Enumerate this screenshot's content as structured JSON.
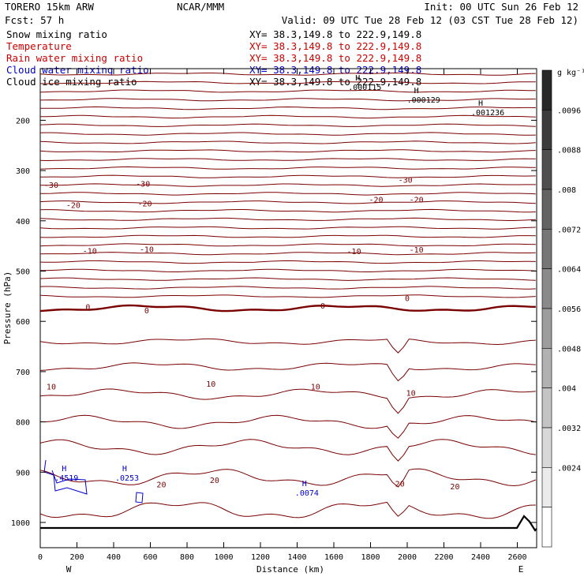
{
  "header": {
    "model": "TORERO  15km ARW",
    "org": "NCAR/MMM",
    "init": "Init: 00 UTC Sun 26 Feb 12",
    "fcst": "Fcst:   57 h",
    "valid": "Valid: 09 UTC Tue 28 Feb 12 (03 CST Tue 28 Feb 12)"
  },
  "fields": [
    {
      "name": "Snow mixing ratio",
      "xy": "XY=  38.3,149.8 to 222.9,149.8",
      "color": "#000000",
      "xy_color": "#000000"
    },
    {
      "name": "Temperature",
      "xy": "XY=  38.3,149.8 to 222.9,149.8",
      "color": "#cc0000",
      "xy_color": "#cc0000"
    },
    {
      "name": "Rain water mixing ratio",
      "xy": "XY=  38.3,149.8 to 222.9,149.8",
      "color": "#cc0000",
      "xy_color": "#cc0000"
    },
    {
      "name": "Cloud water mixing ratio",
      "xy": "XY=  38.3,149.8 to 222.9,149.8",
      "color": "#0000cc",
      "xy_color": "#0000cc"
    },
    {
      "name": "Cloud ice mixing ratio",
      "xy": "XY=  38.3,149.8 to 222.9,149.8",
      "color": "#000000",
      "xy_color": "#000000"
    }
  ],
  "chart_data": {
    "type": "contour",
    "xlabel": "Distance (km)",
    "ylabel": "Pressure (hPa)",
    "xlim": [
      0,
      2760
    ],
    "ylim": [
      1050,
      100
    ],
    "x_ticks": [
      0,
      200,
      400,
      600,
      800,
      1000,
      1200,
      1400,
      1600,
      1800,
      2000,
      2200,
      2400,
      2600
    ],
    "x_tick_labels": [
      "0",
      "200",
      "400",
      "600",
      "800",
      "1000",
      "1200",
      "1400",
      "1600",
      "1800",
      "2000",
      "2200",
      "2400",
      "2600"
    ],
    "y_ticks": [
      200,
      300,
      400,
      500,
      600,
      700,
      800,
      900,
      1000
    ],
    "y_tick_labels": [
      "200",
      "300",
      "400",
      "500",
      "600",
      "700",
      "800",
      "900",
      "1000"
    ],
    "x_end_labels": {
      "left": "W",
      "right": "E"
    },
    "temperature_labels": [
      {
        "text": "-30",
        "x": 60,
        "p": 328
      },
      {
        "text": "-30",
        "x": 560,
        "p": 326
      },
      {
        "text": "-30",
        "x": 1990,
        "p": 318
      },
      {
        "text": "-20",
        "x": 180,
        "p": 368
      },
      {
        "text": "-20",
        "x": 570,
        "p": 365
      },
      {
        "text": "-20",
        "x": 1830,
        "p": 357
      },
      {
        "text": "-20",
        "x": 2050,
        "p": 357
      },
      {
        "text": "-10",
        "x": 270,
        "p": 459
      },
      {
        "text": "-10",
        "x": 580,
        "p": 456
      },
      {
        "text": "-10",
        "x": 1710,
        "p": 460
      },
      {
        "text": "-10",
        "x": 2050,
        "p": 457
      },
      {
        "text": "0",
        "x": 260,
        "p": 571
      },
      {
        "text": "0",
        "x": 580,
        "p": 578
      },
      {
        "text": "0",
        "x": 1540,
        "p": 568
      },
      {
        "text": "0",
        "x": 2000,
        "p": 553
      },
      {
        "text": "10",
        "x": 60,
        "p": 729
      },
      {
        "text": "10",
        "x": 930,
        "p": 724
      },
      {
        "text": "10",
        "x": 1500,
        "p": 729
      },
      {
        "text": "10",
        "x": 2020,
        "p": 742
      },
      {
        "text": "20",
        "x": 660,
        "p": 924
      },
      {
        "text": "20",
        "x": 950,
        "p": 915
      },
      {
        "text": "20",
        "x": 1960,
        "p": 922
      },
      {
        "text": "20",
        "x": 2260,
        "p": 928
      }
    ],
    "maxima_labels": [
      {
        "mark": "H",
        "value": ".000115",
        "x": 1730,
        "p": 140,
        "color": "#000000"
      },
      {
        "mark": "H",
        "value": ".000129",
        "x": 2050,
        "p": 165,
        "color": "#000000"
      },
      {
        "mark": "H",
        "value": ".001236",
        "x": 2400,
        "p": 190,
        "color": "#000000"
      },
      {
        "mark": "H",
        "value": ".4519",
        "x": 130,
        "p": 917,
        "color": "#0000cc"
      },
      {
        "mark": "H",
        "value": ".0253",
        "x": 460,
        "p": 917,
        "color": "#0000cc"
      },
      {
        "mark": "H",
        "value": ".0074",
        "x": 1440,
        "p": 947,
        "color": "#0000cc"
      }
    ],
    "colorbar": {
      "unit": "g kg⁻¹",
      "ticks": [
        ".0096",
        ".0088",
        ".008",
        ".0072",
        ".0064",
        ".0056",
        ".0048",
        ".004",
        ".0032",
        ".0024"
      ]
    }
  }
}
